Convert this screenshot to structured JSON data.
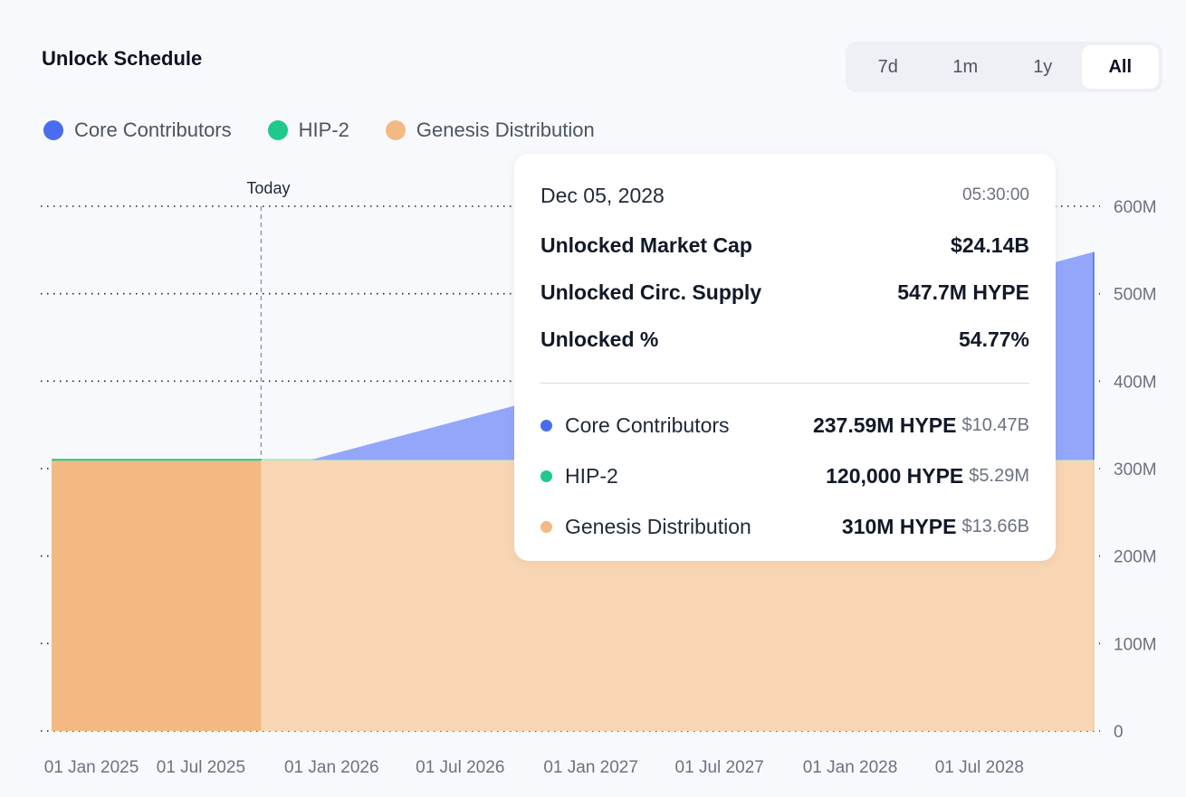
{
  "header": {
    "title": "Unlock Schedule"
  },
  "range_selector": {
    "options": [
      "7d",
      "1m",
      "1y",
      "All"
    ],
    "selected": "All"
  },
  "colors": {
    "core": "#4a6cf0",
    "core_fill": "#93a6fa",
    "hip2": "#1ec98a",
    "genesis": "#f4b983",
    "genesis_future": "#f9d6b3"
  },
  "legend": [
    {
      "label": "Core Contributors",
      "color": "#4a6cf0"
    },
    {
      "label": "HIP-2",
      "color": "#1ec98a"
    },
    {
      "label": "Genesis Distribution",
      "color": "#f4b983"
    }
  ],
  "chart_data": {
    "type": "area",
    "stacked": true,
    "title": "",
    "xlabel": "",
    "ylabel": "",
    "xlim": [
      "2024-11-29",
      "2028-12-05"
    ],
    "ylim": [
      0,
      600000000
    ],
    "y_ticks": [
      "0",
      "100M",
      "200M",
      "300M",
      "400M",
      "500M",
      "600M"
    ],
    "y_tick_values": [
      0,
      100000000,
      200000000,
      300000000,
      400000000,
      500000000,
      600000000
    ],
    "x_ticks": [
      "01 Jan 2025",
      "01 Jul 2025",
      "01 Jan 2026",
      "01 Jul 2026",
      "01 Jan 2027",
      "01 Jul 2027",
      "01 Jan 2028",
      "01 Jul 2028"
    ],
    "x_tick_dates": [
      "2025-01-01",
      "2025-07-01",
      "2026-01-01",
      "2026-07-01",
      "2027-01-01",
      "2027-07-01",
      "2028-01-01",
      "2028-07-01"
    ],
    "grid": true,
    "legend_position": "top-left",
    "today_marker": {
      "label": "Today",
      "date": "2025-09-20"
    },
    "series": [
      {
        "name": "Genesis Distribution",
        "points": [
          [
            "2024-11-29",
            310000000
          ],
          [
            "2028-12-05",
            310000000
          ]
        ]
      },
      {
        "name": "HIP-2",
        "points": [
          [
            "2024-11-29",
            120000
          ],
          [
            "2028-12-05",
            120000
          ]
        ]
      },
      {
        "name": "Core Contributors",
        "points": [
          [
            "2024-11-29",
            0
          ],
          [
            "2025-11-29",
            0
          ],
          [
            "2028-12-05",
            237590000
          ]
        ]
      }
    ]
  },
  "tooltip": {
    "date": "Dec 05, 2028",
    "time": "05:30:00",
    "stats": [
      {
        "label": "Unlocked Market Cap",
        "value": "$24.14B"
      },
      {
        "label": "Unlocked Circ. Supply",
        "value": "547.7M HYPE"
      },
      {
        "label": "Unlocked %",
        "value": "54.77%"
      }
    ],
    "breakdown": [
      {
        "label": "Core Contributors",
        "amount": "237.59M HYPE",
        "usd": "$10.47B",
        "color": "#4a6cf0"
      },
      {
        "label": "HIP-2",
        "amount": "120,000 HYPE",
        "usd": "$5.29M",
        "color": "#1ec98a"
      },
      {
        "label": "Genesis Distribution",
        "amount": "310M HYPE",
        "usd": "$13.66B",
        "color": "#f4b983"
      }
    ]
  }
}
